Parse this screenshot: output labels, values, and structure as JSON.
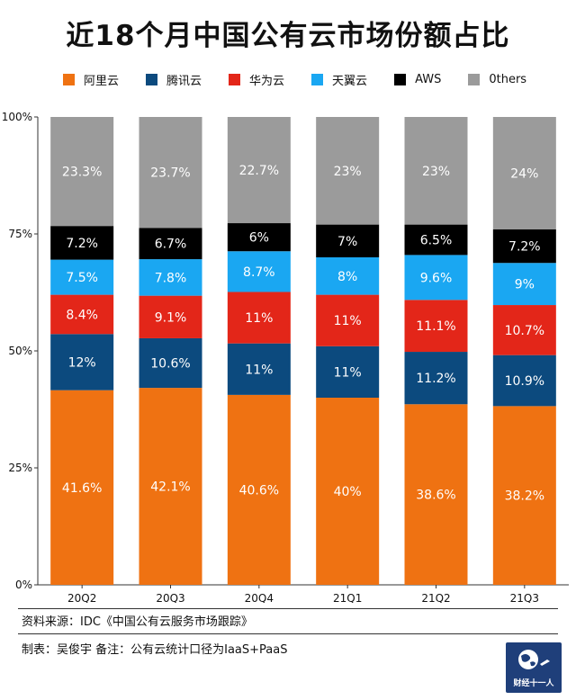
{
  "header": {
    "title": "近18个月中国公有云市场份额占比"
  },
  "legend": [
    {
      "label": "阿里云",
      "color": "#ef7212"
    },
    {
      "label": "腾讯云",
      "color": "#0c4a7e"
    },
    {
      "label": "华为云",
      "color": "#e32619"
    },
    {
      "label": "天翼云",
      "color": "#1aa7f2"
    },
    {
      "label": "AWS",
      "color": "#000000"
    },
    {
      "label": "0thers",
      "color": "#9b9b9b"
    }
  ],
  "chart_data": {
    "type": "bar",
    "stacked": true,
    "categories": [
      "20Q2",
      "20Q3",
      "20Q4",
      "21Q1",
      "21Q2",
      "21Q3"
    ],
    "series": [
      {
        "name": "阿里云",
        "color": "#ef7212",
        "values": [
          41.6,
          42.1,
          40.6,
          40,
          38.6,
          38.2
        ],
        "labels": [
          "41.6%",
          "42.1%",
          "40.6%",
          "40%",
          "38.6%",
          "38.2%"
        ]
      },
      {
        "name": "腾讯云",
        "color": "#0c4a7e",
        "values": [
          12,
          10.6,
          11,
          11,
          11.2,
          10.9
        ],
        "labels": [
          "12%",
          "10.6%",
          "11%",
          "11%",
          "11.2%",
          "10.9%"
        ]
      },
      {
        "name": "华为云",
        "color": "#e32619",
        "values": [
          8.4,
          9.1,
          11,
          11,
          11.1,
          10.7
        ],
        "labels": [
          "8.4%",
          "9.1%",
          "11%",
          "11%",
          "11.1%",
          "10.7%"
        ]
      },
      {
        "name": "天翼云",
        "color": "#1aa7f2",
        "values": [
          7.5,
          7.8,
          8.7,
          8,
          9.6,
          9
        ],
        "labels": [
          "7.5%",
          "7.8%",
          "8.7%",
          "8%",
          "9.6%",
          "9%"
        ]
      },
      {
        "name": "AWS",
        "color": "#000000",
        "values": [
          7.2,
          6.7,
          6,
          7,
          6.5,
          7.2
        ],
        "labels": [
          "7.2%",
          "6.7%",
          "6%",
          "7%",
          "6.5%",
          "7.2%"
        ]
      },
      {
        "name": "0thers",
        "color": "#9b9b9b",
        "values": [
          23.3,
          23.7,
          22.7,
          23,
          23,
          24
        ],
        "labels": [
          "23.3%",
          "23.7%",
          "22.7%",
          "23%",
          "23%",
          "24%"
        ]
      }
    ],
    "ylim": [
      0,
      100
    ],
    "yticks": [
      0,
      25,
      50,
      75,
      100
    ],
    "ytick_labels": [
      "0%",
      "25%",
      "50%",
      "75%",
      "100%"
    ],
    "grid": false,
    "legend_position": "top"
  },
  "footer": {
    "source": "资料来源：IDC《中国公有云服务市场跟踪》",
    "note": "制表：吴俊宇    备注：公有云统计口径为IaaS+PaaS",
    "logo_text": "财经十一人"
  }
}
